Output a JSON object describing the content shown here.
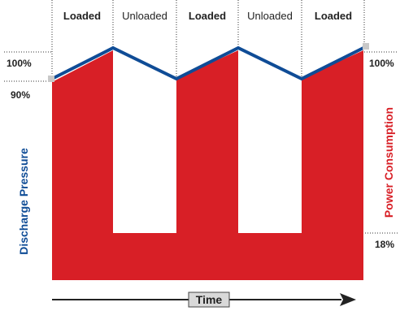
{
  "phases": [
    {
      "label": "Loaded",
      "state": "loaded"
    },
    {
      "label": "Unloaded",
      "state": "unloaded"
    },
    {
      "label": "Loaded",
      "state": "loaded"
    },
    {
      "label": "Unloaded",
      "state": "unloaded"
    },
    {
      "label": "Loaded",
      "state": "loaded"
    }
  ],
  "left_labels": {
    "top": "100%",
    "bottom": "90%"
  },
  "right_labels": {
    "top": "100%",
    "bottom": "18%"
  },
  "y_left_label": "Discharge Pressure",
  "y_right_label": "Power Consumption",
  "x_label": "Time",
  "colors": {
    "power_fill": "#d81f26",
    "pressure_line": "#0f4c96",
    "marker": "#c8c8c8",
    "dotted": "#333333",
    "text": "#222222"
  }
}
